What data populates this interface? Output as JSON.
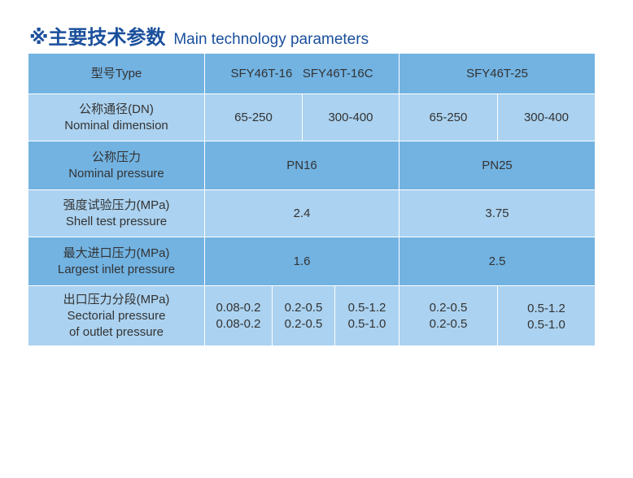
{
  "title": {
    "cn": "※主要技术参数",
    "en": "Main technology parameters"
  },
  "colors": {
    "dark_row": "#72b3e2",
    "light_row": "#abd2f0",
    "title": "#1a4f9c"
  },
  "rows": {
    "type": {
      "label": "型号Type",
      "a": "SFY46T-16   SFY46T-16C",
      "b": "SFY46T-25"
    },
    "dn": {
      "label_cn": "公称通径(DN)",
      "label_en": "Nominal dimension",
      "v1": "65-250",
      "v2": "300-400",
      "v3": "65-250",
      "v4": "300-400"
    },
    "np": {
      "label_cn": "公称压力",
      "label_en": "Nominal pressure",
      "a": "PN16",
      "b": "PN25"
    },
    "shell": {
      "label_cn": "强度试验压力(MPa)",
      "label_en": "Shell test pressure",
      "a": "2.4",
      "b": "3.75"
    },
    "inlet": {
      "label_cn": "最大进口压力(MPa)",
      "label_en": "Largest inlet pressure",
      "a": "1.6",
      "b": "2.5"
    },
    "outlet": {
      "label_cn": "出口压力分段(MPa)",
      "label_en1": "Sectorial pressure",
      "label_en2": "of outlet pressure",
      "cells": [
        [
          "0.08-0.2",
          "0.08-0.2"
        ],
        [
          "0.2-0.5",
          "0.2-0.5"
        ],
        [
          "0.5-1.2",
          "0.5-1.0"
        ],
        [
          "0.2-0.5",
          "0.2-0.5"
        ],
        [
          "0.5-1.2",
          "0.5-1.0"
        ]
      ]
    }
  }
}
